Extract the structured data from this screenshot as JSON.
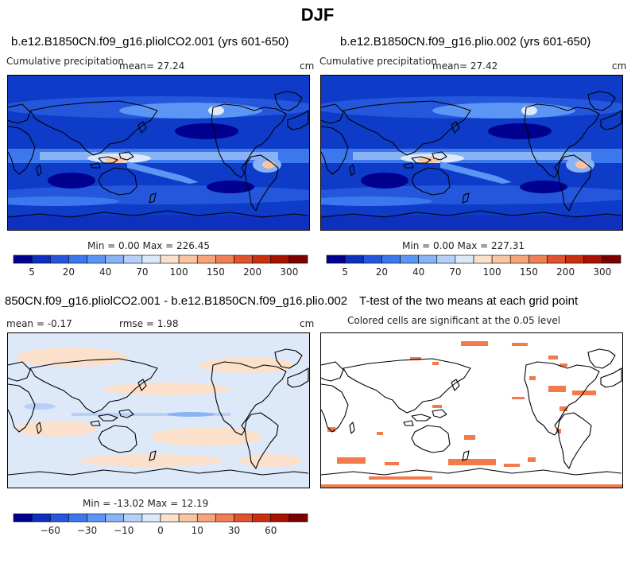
{
  "figure_title": "DJF",
  "panels": {
    "top_left": {
      "title": "b.e12.B1850CN.f09_g16.pliolCO2.001 (yrs 601-650)",
      "variable": "Cumulative precipitation",
      "mean_label": "mean=  27.24",
      "units": "cm",
      "minmax": "Min =   0.00 Max = 226.45"
    },
    "top_right": {
      "title": "b.e12.B1850CN.f09_g16.plio.002 (yrs 601-650)",
      "variable": "Cumulative precipitation",
      "mean_label": "mean=  27.42",
      "units": "cm",
      "minmax": "Min =   0.00 Max = 227.31"
    },
    "bottom_left": {
      "title": "850CN.f09_g16.pliolCO2.001 - b.e12.B1850CN.f09_g16.plio.002",
      "mean_label": "mean = -0.17",
      "rmse_label": "rmse =   1.98",
      "units": "cm",
      "minmax": "Min = -13.02 Max =  12.19"
    },
    "bottom_right": {
      "title": "T-test of the two means at each grid point",
      "subtitle": "Colored cells are significant at the 0.05 level"
    }
  },
  "colorbars": {
    "precip": {
      "colors": [
        "#01018f",
        "#0f2fbf",
        "#2457dc",
        "#3b78ee",
        "#5c96f5",
        "#8ab3f6",
        "#b6d0f7",
        "#dde9f8",
        "#fbe0cb",
        "#f9c5a3",
        "#f5a47c",
        "#ee7f56",
        "#e0532f",
        "#c8300f",
        "#a81200",
        "#7b0000"
      ],
      "labels": [
        "5",
        "20",
        "40",
        "70",
        "100",
        "150",
        "200",
        "300"
      ]
    },
    "diff": {
      "colors": [
        "#01018f",
        "#0f2fbf",
        "#2457dc",
        "#3b78ee",
        "#5c96f5",
        "#8ab3f6",
        "#b6d0f7",
        "#dde9f8",
        "#fbe0cb",
        "#f9c5a3",
        "#f5a47c",
        "#ee7f56",
        "#e0532f",
        "#c8300f",
        "#a81200",
        "#7b0000"
      ],
      "labels": [
        "−60",
        "−30",
        "−10",
        "0",
        "10",
        "30",
        "60"
      ]
    }
  },
  "map_colors": {
    "precip_background": "#0e3bc8",
    "diff_background": "#dde9f8",
    "significant": "#f37a4a",
    "coastline": "#000000"
  }
}
